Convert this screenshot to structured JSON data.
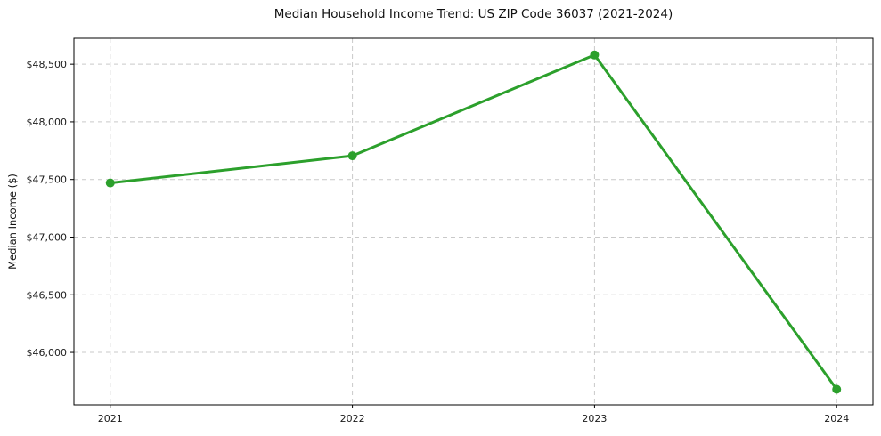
{
  "chart_data": {
    "type": "line",
    "title": "Median Household Income Trend: US ZIP Code 36037 (2021-2024)",
    "xlabel": "",
    "ylabel": "Median Income ($)",
    "categories": [
      "2021",
      "2022",
      "2023",
      "2024"
    ],
    "series": [
      {
        "color": "#2ca02c",
        "values": [
          47470,
          47705,
          48580,
          45680
        ]
      }
    ],
    "ytick_values": [
      46000,
      46500,
      47000,
      47500,
      48000,
      48500
    ],
    "ytick_labels": [
      "$46,000",
      "$46,500",
      "$47,000",
      "$47,500",
      "$48,000",
      "$48,500"
    ],
    "ylim": [
      45545,
      48725
    ],
    "x_margin": 0.15,
    "grid": true,
    "grid_style": "dashed",
    "legend": false,
    "colors": {
      "line": "#2ca02c",
      "marker": "#2ca02c",
      "grid": "#c9c9c9",
      "axis": "#000000",
      "text": "#1a1a1a",
      "background": "#ffffff"
    },
    "line_width": 3,
    "marker_radius": 5
  }
}
